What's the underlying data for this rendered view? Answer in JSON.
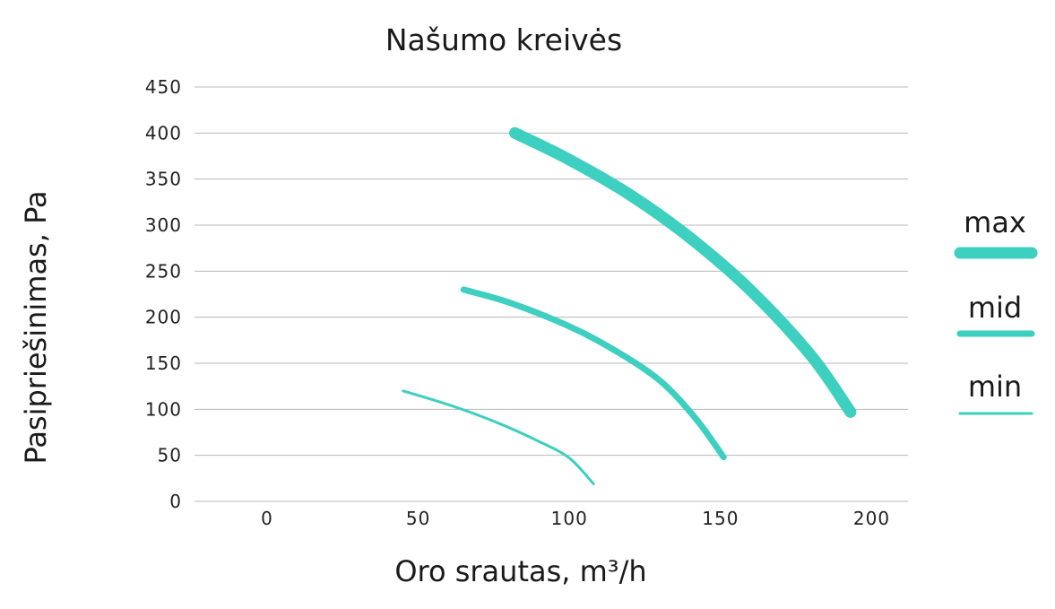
{
  "chart_data": {
    "type": "line",
    "title": "Našumo kreivės",
    "xlabel": "Oro srautas, m³/h",
    "ylabel": "Pasipriešinimas, Pa",
    "xlim": [
      -24,
      212
    ],
    "ylim": [
      0,
      450
    ],
    "x_ticks": [
      "0",
      "50",
      "100",
      "150",
      "200"
    ],
    "y_ticks": [
      "0",
      "50",
      "100",
      "150",
      "200",
      "250",
      "300",
      "350",
      "400",
      "450"
    ],
    "grid": "horizontal",
    "legend_position": "right",
    "accent_color": "#3dcfc0",
    "series": [
      {
        "name": "max",
        "points": [
          [
            82,
            400
          ],
          [
            100,
            371
          ],
          [
            120,
            333
          ],
          [
            140,
            286
          ],
          [
            160,
            229
          ],
          [
            180,
            158
          ],
          [
            193,
            97
          ]
        ]
      },
      {
        "name": "mid",
        "points": [
          [
            65,
            230
          ],
          [
            80,
            216
          ],
          [
            100,
            190
          ],
          [
            115,
            164
          ],
          [
            130,
            131
          ],
          [
            142,
            89
          ],
          [
            151,
            48
          ]
        ]
      },
      {
        "name": "min",
        "points": [
          [
            45,
            120
          ],
          [
            60,
            105
          ],
          [
            75,
            87
          ],
          [
            90,
            65
          ],
          [
            100,
            47
          ],
          [
            108,
            19
          ]
        ]
      }
    ]
  }
}
